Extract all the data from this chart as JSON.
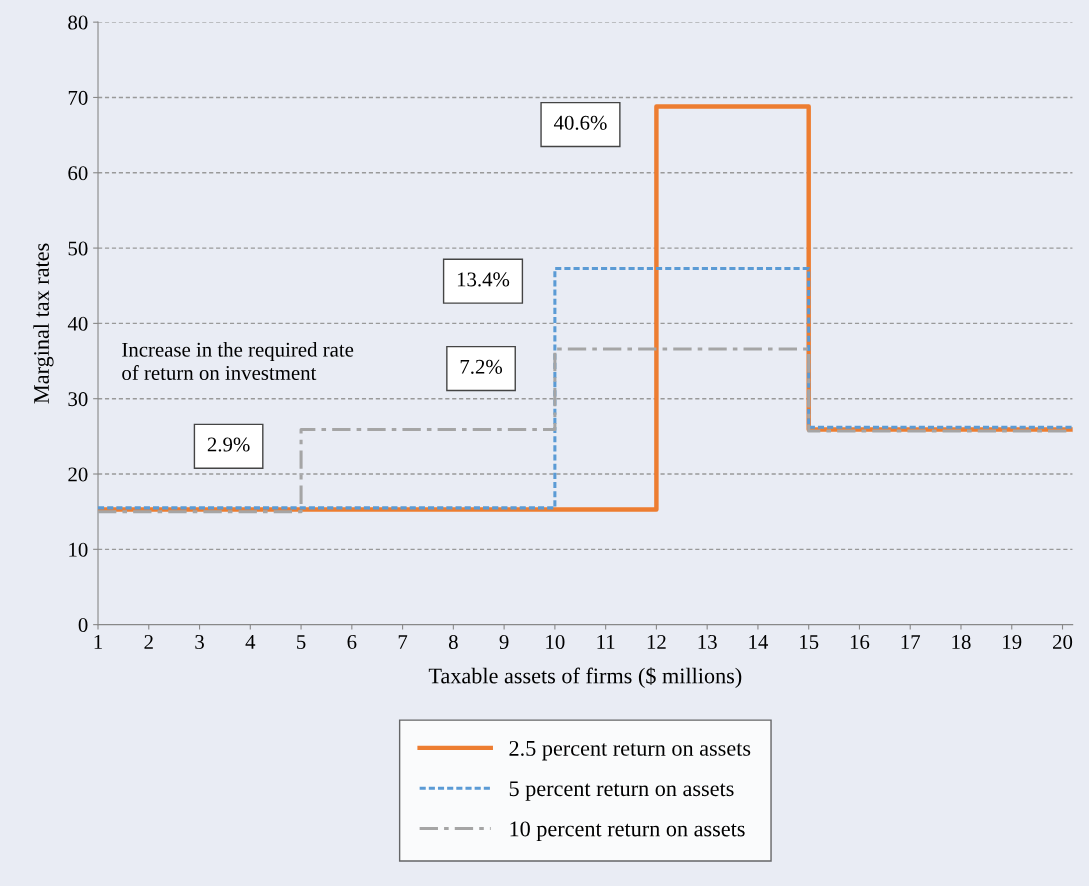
{
  "chart_data": {
    "type": "step",
    "xlabel": "Taxable assets of firms ($ millions)",
    "ylabel": "Marginal tax rates",
    "xlim": [
      1,
      20.2
    ],
    "xticks": [
      1,
      2,
      3,
      4,
      5,
      6,
      7,
      8,
      9,
      10,
      11,
      12,
      13,
      14,
      15,
      16,
      17,
      18,
      19,
      20
    ],
    "ylim": [
      0,
      80
    ],
    "yticks": [
      0,
      10,
      20,
      30,
      40,
      50,
      60,
      70,
      80
    ],
    "grid": "y",
    "legend": "bottom",
    "marker": "none",
    "series": [
      {
        "name": "2.5 percent return on assets",
        "color": "#ed7d31",
        "line_style": "solid",
        "x": [
          1,
          12,
          15,
          20.2
        ],
        "values": [
          15.3,
          68.8,
          25.9,
          25.9
        ]
      },
      {
        "name": "5 percent return on assets",
        "color": "#5b9bd5",
        "line_style": "dotted",
        "x": [
          1,
          10,
          15,
          20.2
        ],
        "values": [
          15.5,
          47.3,
          26.2,
          26.2
        ]
      },
      {
        "name": "10 percent return on assets",
        "color": "#a5a5a5",
        "line_style": "dashdot",
        "x": [
          1,
          5,
          10,
          15,
          20.2
        ],
        "values": [
          15.0,
          25.9,
          36.6,
          25.7,
          25.7
        ]
      }
    ],
    "annotations": [
      "40.6%",
      "13.4%",
      "7.2%",
      "2.9%",
      "Increase in the required rate\nof return on investment"
    ]
  }
}
